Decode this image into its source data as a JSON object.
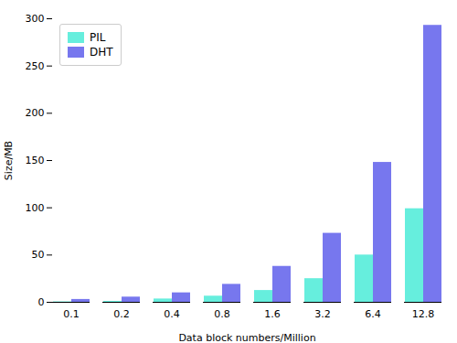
{
  "chart_data": {
    "type": "bar",
    "categories": [
      "0.1",
      "0.2",
      "0.4",
      "0.8",
      "1.6",
      "3.2",
      "6.4",
      "12.8"
    ],
    "series": [
      {
        "name": "PIL",
        "color": "#66EEDD",
        "values": [
          0.5,
          1.0,
          3.5,
          6.5,
          12.5,
          25.0,
          50.0,
          99.0
        ]
      },
      {
        "name": "DHT",
        "color": "#7777EE",
        "values": [
          3.0,
          5.5,
          10.0,
          19.0,
          38.0,
          73.0,
          148.0,
          293.0
        ]
      }
    ],
    "xlabel": "Data block numbers/Million",
    "ylabel": "Size/MB",
    "ylim": [
      0,
      300
    ],
    "yticks": [
      0,
      50,
      100,
      150,
      200,
      250,
      300
    ],
    "legend": "upper left",
    "grid": false
  }
}
